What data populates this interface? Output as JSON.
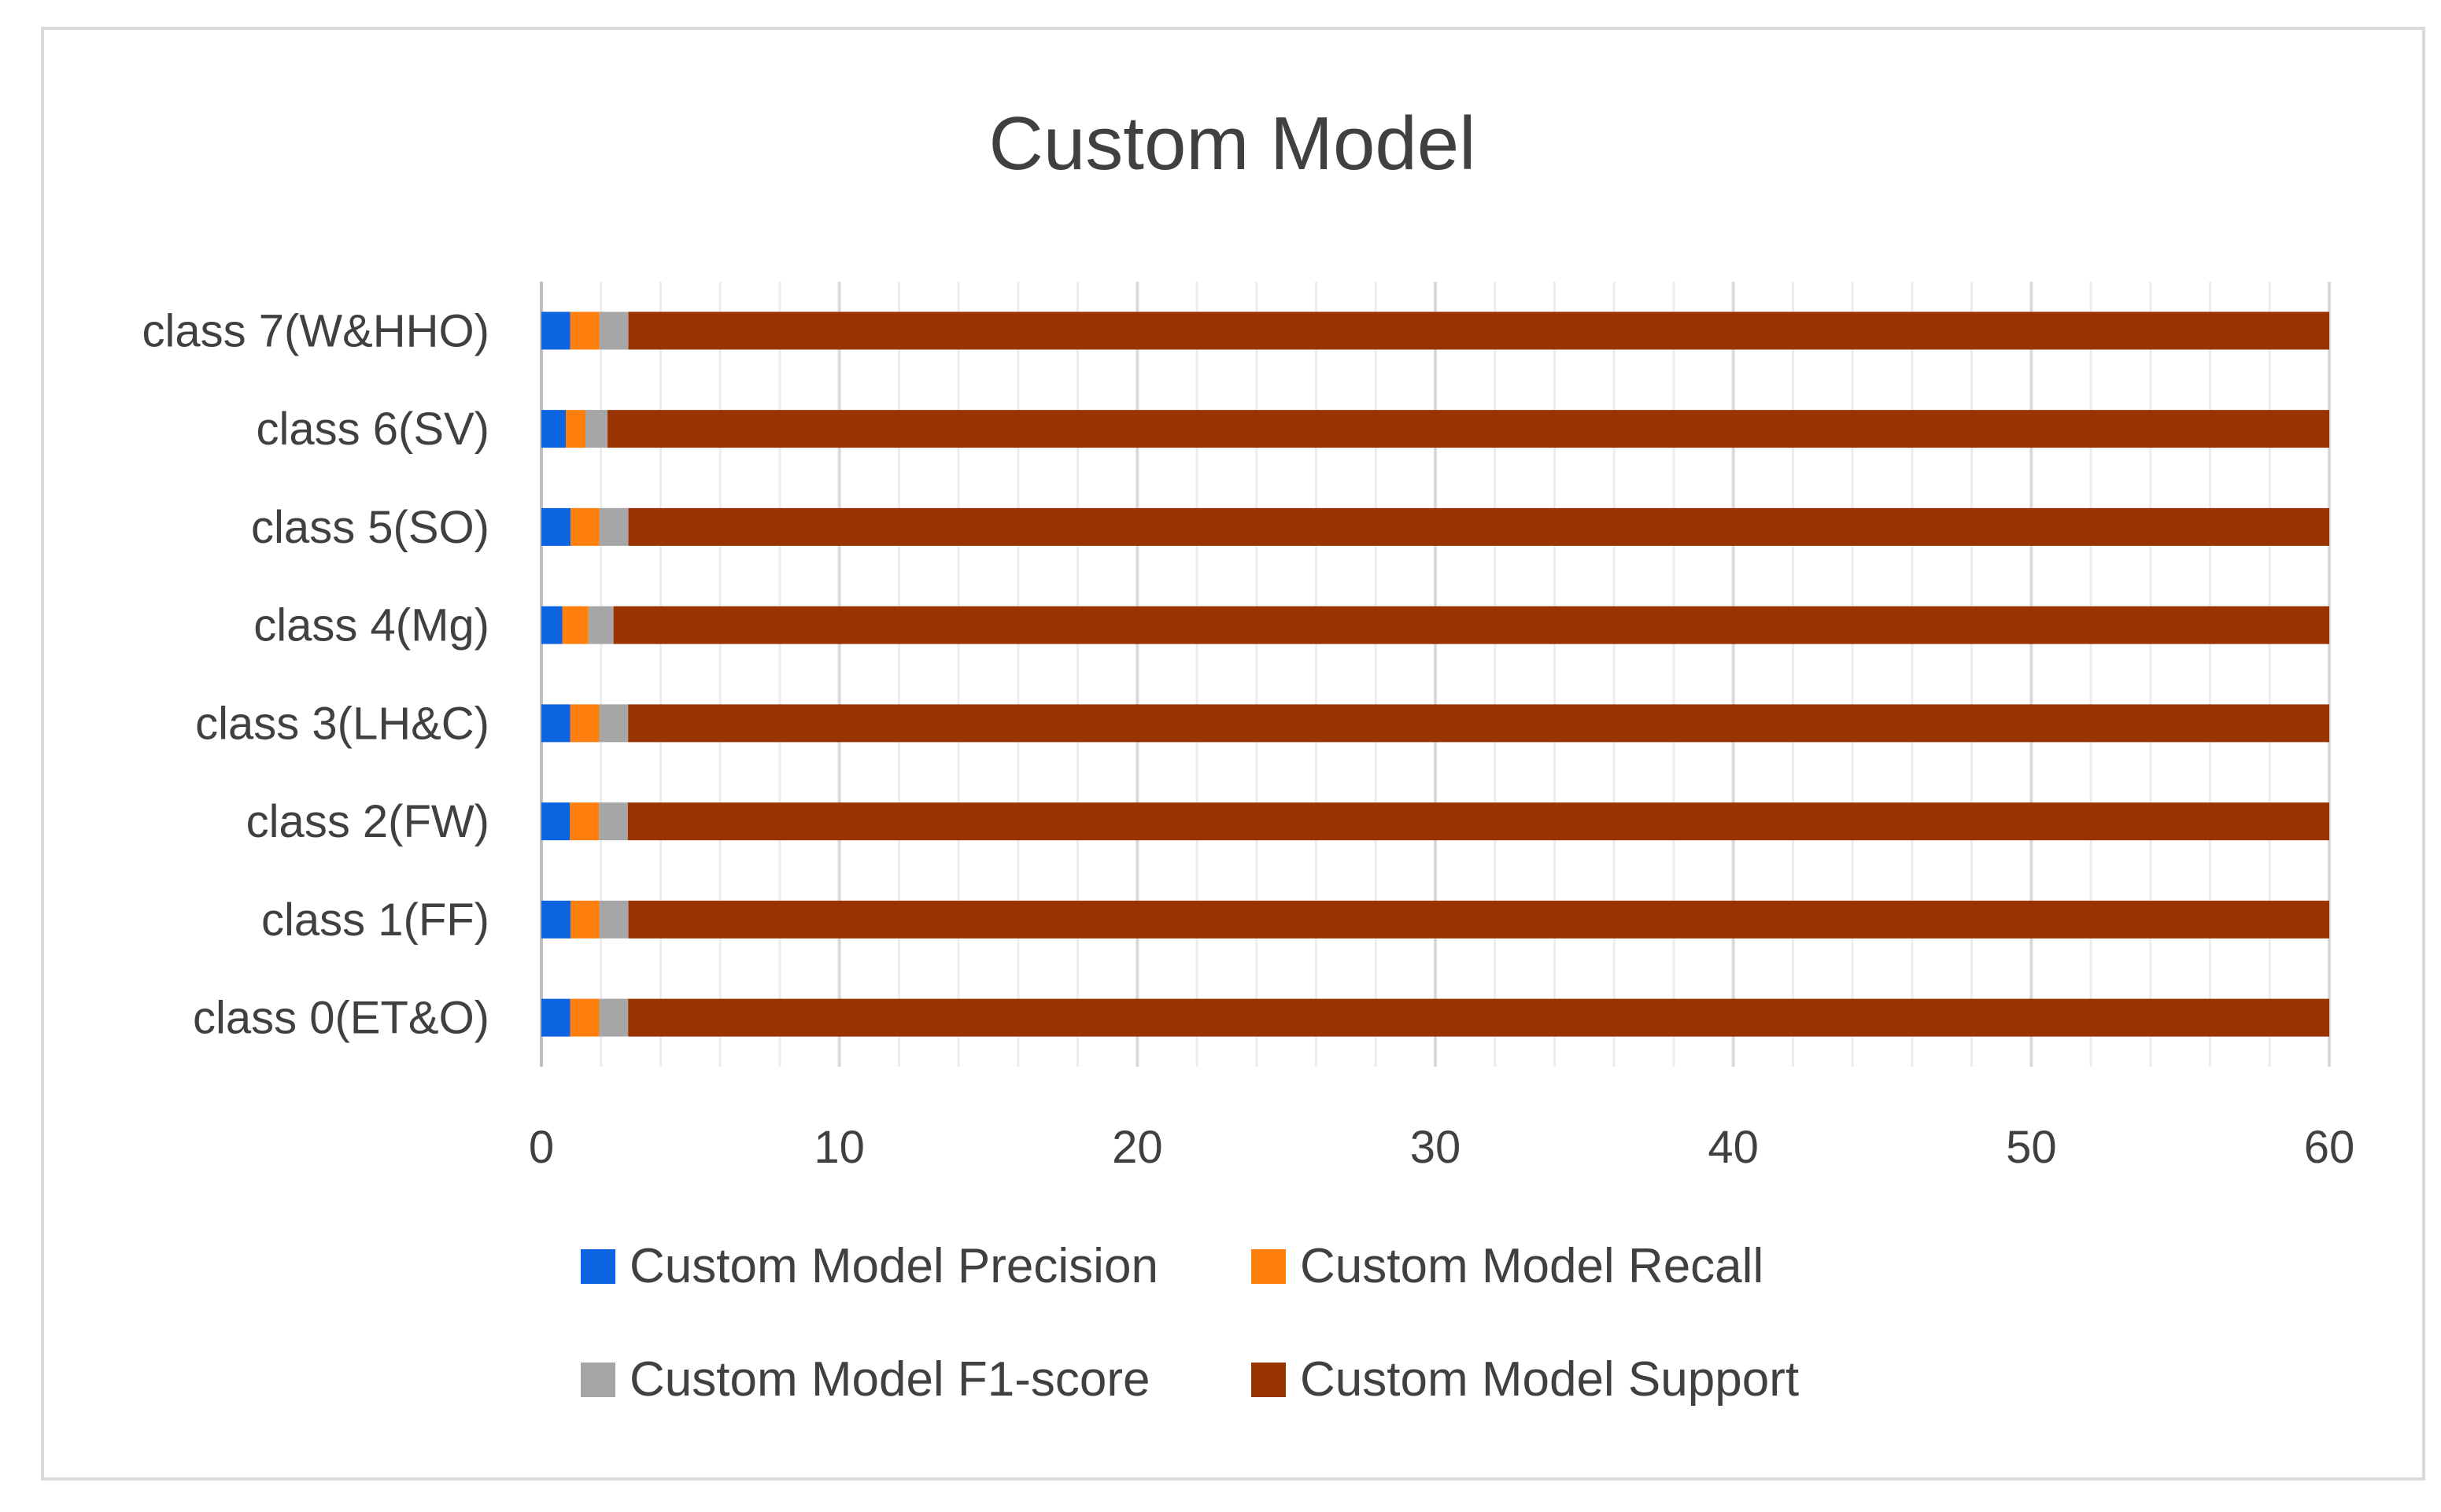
{
  "chart_data": {
    "type": "bar",
    "orientation": "horizontal",
    "stacked": true,
    "title": "Custom Model",
    "categories": [
      "class 0(ET&O)",
      "class 1(FF)",
      "class 2(FW)",
      "class 3(LH&C)",
      "class 4(Mg)",
      "class 5(SO)",
      "class 6(SV)",
      "class 7(W&HHO)"
    ],
    "series": [
      {
        "name": "Custom Model Precision",
        "color": "#0d64e0",
        "values": [
          0.97,
          0.98,
          0.96,
          0.97,
          0.7,
          0.98,
          0.82,
          0.97
        ]
      },
      {
        "name": "Custom Model Recall",
        "color": "#ff7f0e",
        "values": [
          0.97,
          0.97,
          0.97,
          0.97,
          0.88,
          0.97,
          0.66,
          0.98
        ]
      },
      {
        "name": "Custom Model F1-score",
        "color": "#a6a6a6",
        "values": [
          0.97,
          0.97,
          0.97,
          0.97,
          0.84,
          0.97,
          0.74,
          0.97
        ]
      },
      {
        "name": "Custom Model Support",
        "color": "#993300",
        "values": [
          57.09,
          57.08,
          57.1,
          57.09,
          57.58,
          57.08,
          57.78,
          57.08
        ]
      }
    ],
    "xlim": [
      0,
      60
    ],
    "xticks": [
      "0",
      "10",
      "20",
      "30",
      "40",
      "50",
      "60"
    ],
    "grid": "vertical",
    "legend_position": "bottom"
  }
}
